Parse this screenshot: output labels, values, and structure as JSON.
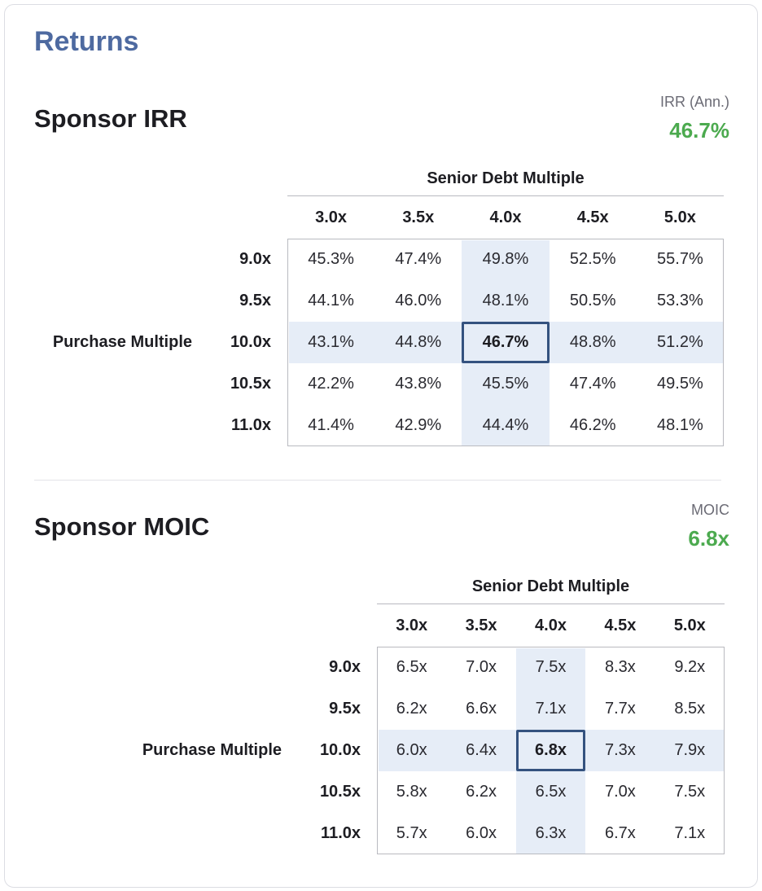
{
  "card": {
    "title": "Returns"
  },
  "irr": {
    "title": "Sponsor IRR",
    "metric_label": "IRR (Ann.)",
    "metric_value": "46.7%",
    "col_group_label": "Senior Debt Multiple",
    "row_group_label": "Purchase Multiple",
    "col_headers": [
      "3.0x",
      "3.5x",
      "4.0x",
      "4.5x",
      "5.0x"
    ],
    "row_headers": [
      "9.0x",
      "9.5x",
      "10.0x",
      "10.5x",
      "11.0x"
    ],
    "cells": [
      [
        "45.3%",
        "47.4%",
        "49.8%",
        "52.5%",
        "55.7%"
      ],
      [
        "44.1%",
        "46.0%",
        "48.1%",
        "50.5%",
        "53.3%"
      ],
      [
        "43.1%",
        "44.8%",
        "46.7%",
        "48.8%",
        "51.2%"
      ],
      [
        "42.2%",
        "43.8%",
        "45.5%",
        "47.4%",
        "49.5%"
      ],
      [
        "41.4%",
        "42.9%",
        "44.4%",
        "46.2%",
        "48.1%"
      ]
    ],
    "highlight_col": 2,
    "highlight_row": 2
  },
  "moic": {
    "title": "Sponsor MOIC",
    "metric_label": "MOIC",
    "metric_value": "6.8x",
    "col_group_label": "Senior Debt Multiple",
    "row_group_label": "Purchase Multiple",
    "col_headers": [
      "3.0x",
      "3.5x",
      "4.0x",
      "4.5x",
      "5.0x"
    ],
    "row_headers": [
      "9.0x",
      "9.5x",
      "10.0x",
      "10.5x",
      "11.0x"
    ],
    "cells": [
      [
        "6.5x",
        "7.0x",
        "7.5x",
        "8.3x",
        "9.2x"
      ],
      [
        "6.2x",
        "6.6x",
        "7.1x",
        "7.7x",
        "8.5x"
      ],
      [
        "6.0x",
        "6.4x",
        "6.8x",
        "7.3x",
        "7.9x"
      ],
      [
        "5.8x",
        "6.2x",
        "6.5x",
        "7.0x",
        "7.5x"
      ],
      [
        "5.7x",
        "6.0x",
        "6.3x",
        "6.7x",
        "7.1x"
      ]
    ],
    "highlight_col": 2,
    "highlight_row": 2
  },
  "colors": {
    "title_blue": "#4e6aa0",
    "metric_green": "#4caa4f",
    "highlight_bg": "#e6edf7",
    "selected_border": "#34527f"
  }
}
